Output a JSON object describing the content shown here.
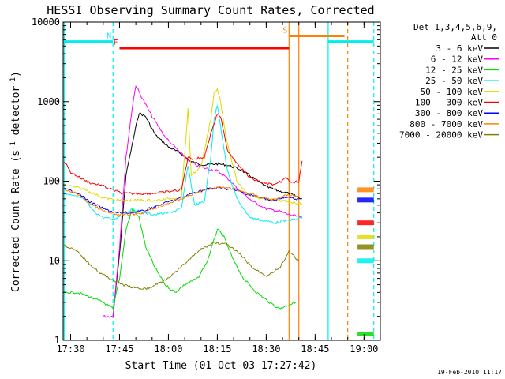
{
  "chart_data": {
    "type": "line",
    "title": "HESSI Observing Summary Count Rates, Corrected",
    "xlabel": "Start Time (01-Oct-03 17:27:42)",
    "ylabel": "Corrected Count Rate (s⁻¹ detector⁻¹)",
    "ylabel_main": "Corrected Count Rate (s",
    "ylabel_sup1": "-1",
    "ylabel_mid": " detector",
    "ylabel_sup2": "-1",
    "ylabel_end": ")",
    "xlim": [
      "17:27:42",
      "19:05:00"
    ],
    "ylim": [
      1,
      10000
    ],
    "yscale": "log",
    "xticks": [
      "17:30",
      "17:45",
      "18:00",
      "18:15",
      "18:30",
      "18:45",
      "19:00"
    ],
    "yticks": [
      1,
      10,
      100,
      1000,
      10000
    ],
    "ytick_labels": [
      "1",
      "10",
      "100",
      "1000",
      "10000"
    ],
    "legend_title": "Det 1,3,4,5,6,9,",
    "legend_title2": "Att 0",
    "legend_position": "right",
    "footer": "19-Feb-2010 11:17",
    "series": [
      {
        "name": "3 - 6 keV",
        "color": "#000000",
        "points": [
          [
            "17:43",
            2
          ],
          [
            "17:45",
            12
          ],
          [
            "17:47",
            120
          ],
          [
            "17:50",
            480
          ],
          [
            "17:51",
            720
          ],
          [
            "17:53",
            650
          ],
          [
            "17:56",
            380
          ],
          [
            "18:00",
            270
          ],
          [
            "18:04",
            220
          ],
          [
            "18:07",
            175
          ],
          [
            "18:11",
            160
          ],
          [
            "18:15",
            165
          ],
          [
            "18:18",
            160
          ],
          [
            "18:22",
            140
          ],
          [
            "18:26",
            110
          ],
          [
            "18:30",
            85
          ],
          [
            "18:34",
            75
          ],
          [
            "18:37",
            70
          ],
          [
            "18:39",
            65
          ],
          [
            "18:41",
            60
          ]
        ]
      },
      {
        "name": "6 - 12 keV",
        "color": "#ff00ff",
        "points": [
          [
            "17:40",
            2
          ],
          [
            "17:43",
            2
          ],
          [
            "17:45",
            15
          ],
          [
            "17:47",
            200
          ],
          [
            "17:49",
            900
          ],
          [
            "17:50",
            1600
          ],
          [
            "17:52",
            1100
          ],
          [
            "17:55",
            650
          ],
          [
            "17:59",
            360
          ],
          [
            "18:04",
            220
          ],
          [
            "18:07",
            170
          ],
          [
            "18:10",
            150
          ],
          [
            "18:13",
            140
          ],
          [
            "18:15",
            135
          ],
          [
            "18:18",
            110
          ],
          [
            "18:22",
            75
          ],
          [
            "18:26",
            55
          ],
          [
            "18:30",
            45
          ],
          [
            "18:34",
            42
          ],
          [
            "18:37",
            38
          ],
          [
            "18:41",
            35
          ]
        ]
      },
      {
        "name": "12 - 25 keV",
        "color": "#00dd00",
        "points": [
          [
            "17:28",
            4
          ],
          [
            "17:32",
            4
          ],
          [
            "17:36",
            3.5
          ],
          [
            "17:40",
            3
          ],
          [
            "17:43",
            2.5
          ],
          [
            "17:45",
            6
          ],
          [
            "17:47",
            25
          ],
          [
            "17:49",
            45
          ],
          [
            "17:51",
            35
          ],
          [
            "17:53",
            15
          ],
          [
            "17:56",
            8
          ],
          [
            "17:59",
            5
          ],
          [
            "18:02",
            4
          ],
          [
            "18:05",
            5
          ],
          [
            "18:09",
            6
          ],
          [
            "18:12",
            10
          ],
          [
            "18:15",
            25
          ],
          [
            "18:17",
            20
          ],
          [
            "18:20",
            10
          ],
          [
            "18:23",
            6
          ],
          [
            "18:27",
            4
          ],
          [
            "18:31",
            3
          ],
          [
            "18:34",
            2.5
          ],
          [
            "18:37",
            2.8
          ],
          [
            "18:39",
            3
          ]
        ]
      },
      {
        "name": "25 - 50 keV",
        "color": "#00eeee",
        "points": [
          [
            "17:28",
            70
          ],
          [
            "17:31",
            65
          ],
          [
            "17:34",
            60
          ],
          [
            "17:37",
            42
          ],
          [
            "17:40",
            35
          ],
          [
            "17:43",
            33
          ],
          [
            "17:46",
            38
          ],
          [
            "17:49",
            45
          ],
          [
            "17:52",
            40
          ],
          [
            "17:56",
            38
          ],
          [
            "18:00",
            40
          ],
          [
            "18:04",
            45
          ],
          [
            "18:06",
            160
          ],
          [
            "18:08",
            50
          ],
          [
            "18:11",
            55
          ],
          [
            "18:13",
            200
          ],
          [
            "18:14",
            600
          ],
          [
            "18:15",
            900
          ],
          [
            "18:16",
            500
          ],
          [
            "18:18",
            140
          ],
          [
            "18:21",
            60
          ],
          [
            "18:25",
            35
          ],
          [
            "18:29",
            32
          ],
          [
            "18:33",
            30
          ],
          [
            "18:36",
            32
          ],
          [
            "18:39",
            33
          ],
          [
            "18:41",
            35
          ]
        ]
      },
      {
        "name": "50 - 100 keV",
        "color": "#dddd00",
        "points": [
          [
            "17:28",
            90
          ],
          [
            "17:31",
            85
          ],
          [
            "17:34",
            80
          ],
          [
            "17:37",
            70
          ],
          [
            "17:40",
            62
          ],
          [
            "17:44",
            58
          ],
          [
            "17:48",
            57
          ],
          [
            "17:52",
            58
          ],
          [
            "17:56",
            57
          ],
          [
            "18:00",
            60
          ],
          [
            "18:04",
            63
          ],
          [
            "18:06",
            800
          ],
          [
            "18:07",
            120
          ],
          [
            "18:10",
            150
          ],
          [
            "18:13",
            600
          ],
          [
            "18:14",
            1300
          ],
          [
            "18:15",
            1450
          ],
          [
            "18:16",
            1000
          ],
          [
            "18:18",
            300
          ],
          [
            "18:21",
            100
          ],
          [
            "18:25",
            65
          ],
          [
            "18:29",
            60
          ],
          [
            "18:33",
            58
          ],
          [
            "18:37",
            55
          ],
          [
            "18:41",
            52
          ]
        ]
      },
      {
        "name": "100 - 300 keV",
        "color": "#ff0000",
        "points": [
          [
            "17:28",
            180
          ],
          [
            "17:30",
            130
          ],
          [
            "17:33",
            110
          ],
          [
            "17:36",
            95
          ],
          [
            "17:39",
            90
          ],
          [
            "17:42",
            80
          ],
          [
            "17:46",
            70
          ],
          [
            "17:50",
            70
          ],
          [
            "17:54",
            70
          ],
          [
            "17:58",
            72
          ],
          [
            "18:01",
            75
          ],
          [
            "18:04",
            78
          ],
          [
            "18:06",
            200
          ],
          [
            "18:08",
            190
          ],
          [
            "18:11",
            200
          ],
          [
            "18:13",
            400
          ],
          [
            "18:15",
            700
          ],
          [
            "18:16",
            650
          ],
          [
            "18:18",
            250
          ],
          [
            "18:21",
            170
          ],
          [
            "18:25",
            110
          ],
          [
            "18:29",
            95
          ],
          [
            "18:33",
            90
          ],
          [
            "18:36",
            110
          ],
          [
            "18:38",
            95
          ],
          [
            "18:40",
            100
          ],
          [
            "18:41",
            180
          ]
        ]
      },
      {
        "name": "300 - 800 keV",
        "color": "#0000ff",
        "points": [
          [
            "17:28",
            80
          ],
          [
            "17:32",
            72
          ],
          [
            "17:36",
            55
          ],
          [
            "17:40",
            45
          ],
          [
            "17:44",
            40
          ],
          [
            "17:48",
            40
          ],
          [
            "17:52",
            42
          ],
          [
            "17:56",
            48
          ],
          [
            "18:00",
            55
          ],
          [
            "18:04",
            62
          ],
          [
            "18:08",
            72
          ],
          [
            "18:12",
            80
          ],
          [
            "18:16",
            82
          ],
          [
            "18:20",
            78
          ],
          [
            "18:24",
            70
          ],
          [
            "18:28",
            62
          ],
          [
            "18:32",
            58
          ],
          [
            "18:36",
            62
          ],
          [
            "18:40",
            60
          ]
        ]
      },
      {
        "name": "800 - 7000 keV",
        "color": "#ff8000",
        "points": [
          [
            "17:28",
            78
          ],
          [
            "17:32",
            70
          ],
          [
            "17:36",
            52
          ],
          [
            "17:40",
            42
          ],
          [
            "17:44",
            38
          ],
          [
            "17:48",
            38
          ],
          [
            "17:52",
            40
          ],
          [
            "17:56",
            46
          ],
          [
            "18:00",
            53
          ],
          [
            "18:04",
            60
          ],
          [
            "18:08",
            70
          ],
          [
            "18:12",
            80
          ],
          [
            "18:16",
            84
          ],
          [
            "18:20",
            80
          ],
          [
            "18:24",
            72
          ],
          [
            "18:28",
            63
          ],
          [
            "18:32",
            58
          ],
          [
            "18:36",
            68
          ],
          [
            "18:40",
            64
          ]
        ]
      },
      {
        "name": "7000 - 20000 keV",
        "color": "#808000",
        "points": [
          [
            "17:28",
            16
          ],
          [
            "17:32",
            13
          ],
          [
            "17:36",
            9
          ],
          [
            "17:39",
            7
          ],
          [
            "17:42",
            6
          ],
          [
            "17:46",
            5
          ],
          [
            "17:50",
            4.5
          ],
          [
            "17:54",
            4.5
          ],
          [
            "17:58",
            5.5
          ],
          [
            "18:02",
            7
          ],
          [
            "18:06",
            10
          ],
          [
            "18:10",
            14
          ],
          [
            "18:14",
            17
          ],
          [
            "18:18",
            16
          ],
          [
            "18:22",
            12
          ],
          [
            "18:26",
            8
          ],
          [
            "18:30",
            6.5
          ],
          [
            "18:34",
            8
          ],
          [
            "18:37",
            13
          ],
          [
            "18:40",
            10
          ]
        ]
      }
    ],
    "late_segments": [
      {
        "color": "#ff8000",
        "x0": "18:58",
        "x1": "19:03",
        "y": 78
      },
      {
        "color": "#0000ff",
        "x0": "18:58",
        "x1": "19:03",
        "y": 58
      },
      {
        "color": "#ff0000",
        "x0": "18:58",
        "x1": "19:03",
        "y": 30
      },
      {
        "color": "#dddd00",
        "x0": "18:58",
        "x1": "19:03",
        "y": 20
      },
      {
        "color": "#808000",
        "x0": "18:58",
        "x1": "19:03",
        "y": 15
      },
      {
        "color": "#00eeee",
        "x0": "18:58",
        "x1": "19:03",
        "y": 10
      },
      {
        "color": "#00dd00",
        "x0": "18:58",
        "x1": "19:03",
        "y": 1.2
      }
    ],
    "flag_bars": [
      {
        "label": "",
        "color": "#00eeee",
        "x0": "17:27:42",
        "x1": "17:43",
        "y": 5700
      },
      {
        "label": "N",
        "color": "#00eeee",
        "x0": "17:43",
        "x1": "17:43",
        "y": 5700
      },
      {
        "label": "F",
        "color": "#ff0000",
        "x0": "17:45",
        "x1": "18:37",
        "y": 4700
      },
      {
        "label": "S",
        "color": "#ff8000",
        "x0": "18:37",
        "x1": "18:54",
        "y": 6700
      },
      {
        "label": "",
        "color": "#00eeee",
        "x0": "18:49",
        "x1": "19:03",
        "y": 5700
      }
    ],
    "vertical_lines": [
      {
        "x": "17:28",
        "color": "#00eeee",
        "dash": false
      },
      {
        "x": "17:43",
        "color": "#00eeee",
        "dash": true
      },
      {
        "x": "18:37",
        "color": "#ff8000",
        "dash": false
      },
      {
        "x": "18:40",
        "color": "#ff8000",
        "dash": false
      },
      {
        "x": "18:49",
        "color": "#00eeee",
        "dash": false
      },
      {
        "x": "18:55",
        "color": "#ff8000",
        "dash": true
      },
      {
        "x": "19:03",
        "color": "#00eeee",
        "dash": true
      }
    ]
  }
}
